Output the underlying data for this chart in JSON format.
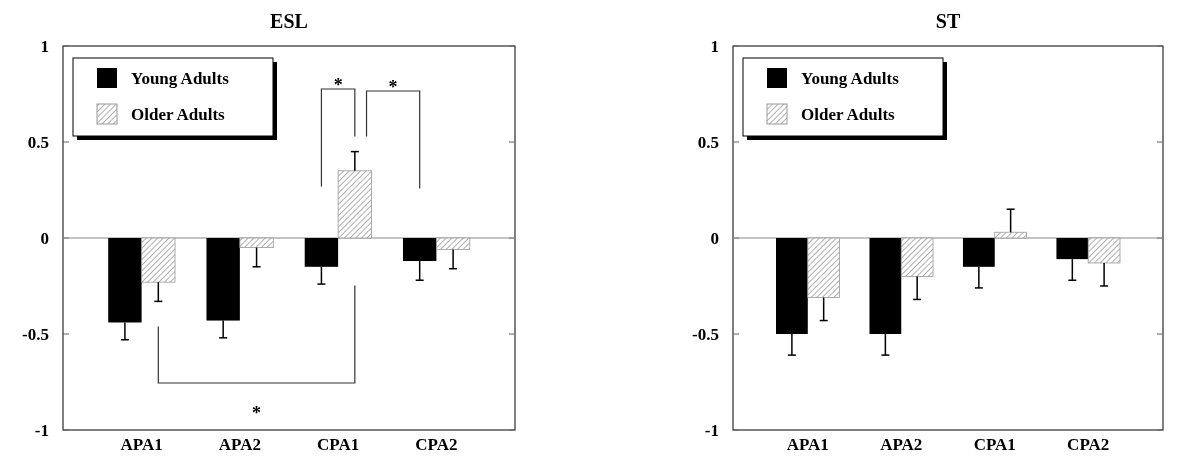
{
  "chart_data": [
    {
      "type": "bar",
      "title": "ESL",
      "categories": [
        "APA1",
        "APA2",
        "CPA1",
        "CPA2"
      ],
      "ylim": [
        -1,
        1
      ],
      "yticks": [
        -1,
        -0.5,
        0,
        0.5,
        1
      ],
      "legend": "top left",
      "series": [
        {
          "name": "Young Adults",
          "color": "#000000",
          "values": [
            -0.44,
            -0.43,
            -0.15,
            -0.12
          ],
          "errors": [
            0.09,
            0.09,
            0.09,
            0.1
          ]
        },
        {
          "name": "Older Adults",
          "color": "#8c8c8c",
          "values": [
            -0.23,
            -0.05,
            0.35,
            -0.06
          ],
          "errors": [
            0.1,
            0.1,
            0.1,
            0.1
          ]
        }
      ],
      "annotations": [
        "*",
        "*",
        "*"
      ]
    },
    {
      "type": "bar",
      "title": "ST",
      "categories": [
        "APA1",
        "APA2",
        "CPA1",
        "CPA2"
      ],
      "ylim": [
        -1,
        1
      ],
      "yticks": [
        -1,
        -0.5,
        0,
        0.5,
        1
      ],
      "legend": "top left",
      "series": [
        {
          "name": "Young Adults",
          "color": "#000000",
          "values": [
            -0.5,
            -0.5,
            -0.15,
            -0.11
          ],
          "errors": [
            0.11,
            0.11,
            0.11,
            0.11
          ]
        },
        {
          "name": "Older Adults",
          "color": "#8c8c8c",
          "values": [
            -0.31,
            -0.2,
            0.03,
            -0.13
          ],
          "errors": [
            0.12,
            0.12,
            0.12,
            0.12
          ]
        }
      ]
    }
  ]
}
